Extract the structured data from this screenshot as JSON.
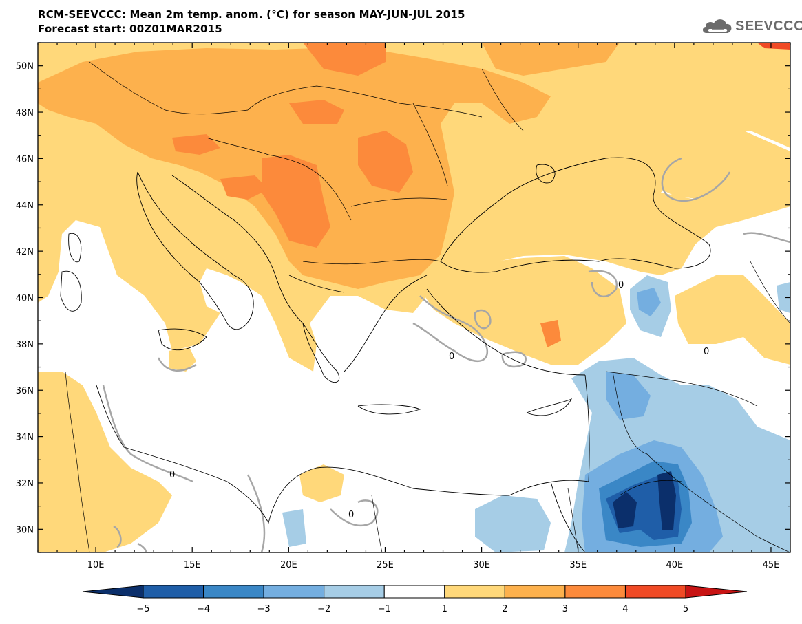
{
  "header": {
    "title_line1": "RCM-SEEVCCC: Mean 2m temp. anom. (°C) for season MAY-JUN-JUL 2015",
    "title_line2": "Forecast start: 00Z01MAR2015"
  },
  "logo": {
    "text": "SEEVCCC",
    "icon": "cloud-icon"
  },
  "map": {
    "lon_range": [
      7,
      46
    ],
    "lat_range": [
      29,
      51
    ],
    "lon_ticks": [
      {
        "value": 10,
        "label": "10E"
      },
      {
        "value": 15,
        "label": "15E"
      },
      {
        "value": 20,
        "label": "20E"
      },
      {
        "value": 25,
        "label": "25E"
      },
      {
        "value": 30,
        "label": "30E"
      },
      {
        "value": 35,
        "label": "35E"
      },
      {
        "value": 40,
        "label": "40E"
      },
      {
        "value": 45,
        "label": "45E"
      }
    ],
    "lat_ticks": [
      {
        "value": 30,
        "label": "30N"
      },
      {
        "value": 32,
        "label": "32N"
      },
      {
        "value": 34,
        "label": "34N"
      },
      {
        "value": 36,
        "label": "36N"
      },
      {
        "value": 38,
        "label": "38N"
      },
      {
        "value": 40,
        "label": "40N"
      },
      {
        "value": 42,
        "label": "42N"
      },
      {
        "value": 44,
        "label": "44N"
      },
      {
        "value": 46,
        "label": "46N"
      },
      {
        "value": 48,
        "label": "48N"
      },
      {
        "value": 50,
        "label": "50N"
      }
    ],
    "zero_contour_label": "0"
  },
  "colorbar": {
    "bounds": [
      "-5",
      "-4",
      "-3",
      "-2",
      "-1",
      "1",
      "2",
      "3",
      "4",
      "5"
    ],
    "colors": [
      "#0b2f6b",
      "#1f5ea8",
      "#3a87c6",
      "#74aee0",
      "#a6cde6",
      "#ffffff",
      "#ffd87a",
      "#fdb14d",
      "#fc8a3b",
      "#f04a25",
      "#c81414"
    ]
  }
}
